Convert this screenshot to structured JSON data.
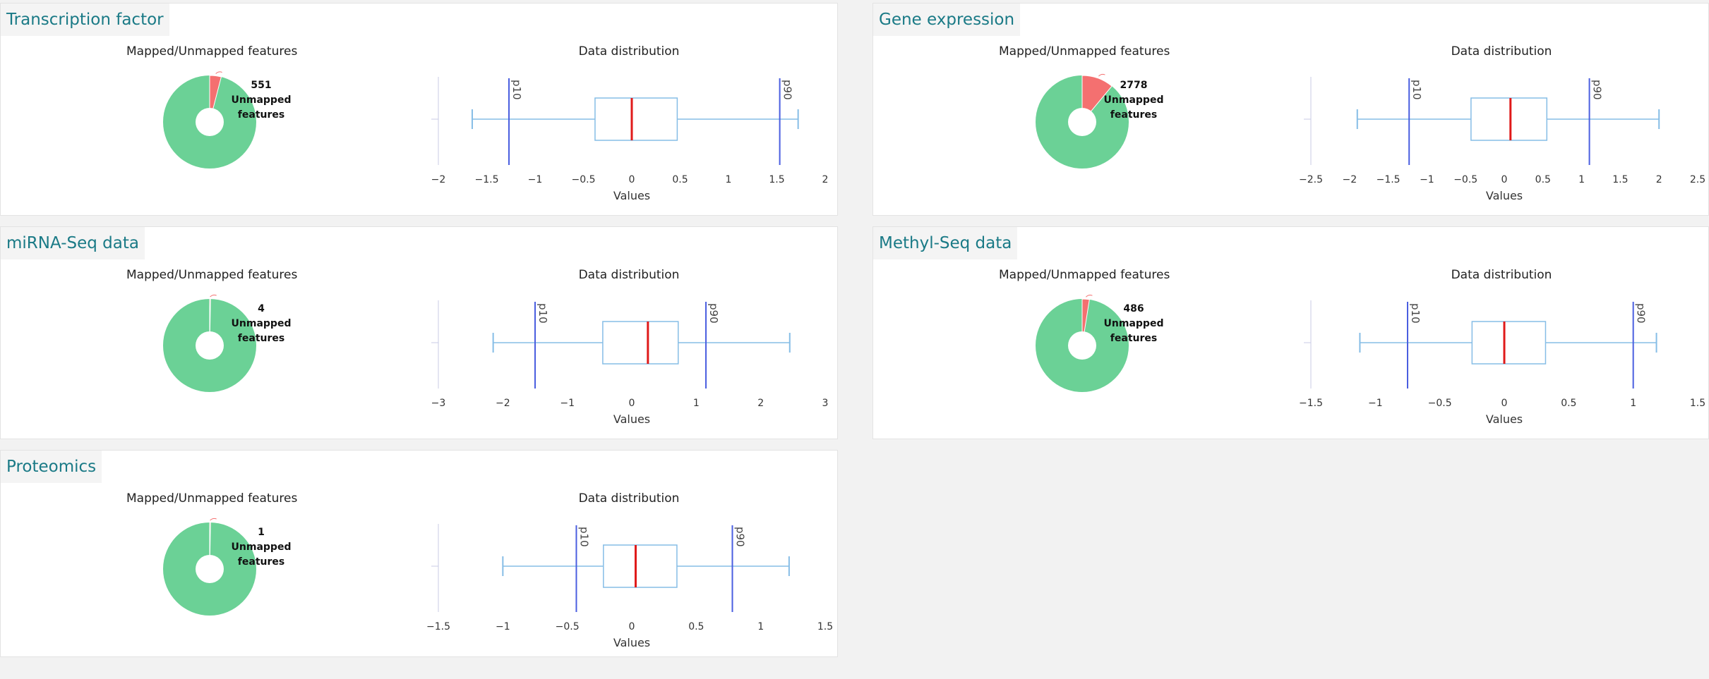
{
  "colors": {
    "mapped": "#6bd196",
    "unmapped": "#f47070",
    "box": "#86bde6",
    "median": "#e01a1a",
    "pline": "#4a5ee0",
    "title": "#1a7a86"
  },
  "labels": {
    "pie_title": "Mapped/Unmapped features",
    "box_title": "Data distribution",
    "xlabel": "Values",
    "unmapped_text": "Unmapped",
    "features_text": "features"
  },
  "panels": [
    {
      "title": "Transcription factor",
      "unmapped_count": "551",
      "unmapped_fraction": 0.04,
      "chart_data": {
        "type": "boxplot",
        "xlim": [
          -2,
          2
        ],
        "ticks": [
          -2,
          -1.5,
          -1,
          -0.5,
          0,
          0.5,
          1,
          1.5,
          2
        ],
        "tick_labels": [
          "−2",
          "−1.5",
          "−1",
          "−0.5",
          "0",
          "0.5",
          "1",
          "1.5",
          "2"
        ],
        "whisker_low": -1.65,
        "q1": -0.38,
        "median": 0,
        "q3": 0.47,
        "whisker_high": 1.72,
        "p10": -1.27,
        "p90": 1.53,
        "xlabel": "Values"
      }
    },
    {
      "title": "Gene expression",
      "unmapped_count": "2778",
      "unmapped_fraction": 0.11,
      "chart_data": {
        "type": "boxplot",
        "xlim": [
          -2.5,
          2.5
        ],
        "ticks": [
          -2.5,
          -2,
          -1.5,
          -1,
          -0.5,
          0,
          0.5,
          1,
          1.5,
          2,
          2.5
        ],
        "tick_labels": [
          "−2.5",
          "−2",
          "−1.5",
          "−1",
          "−0.5",
          "0",
          "0.5",
          "1",
          "1.5",
          "2",
          "2.5"
        ],
        "whisker_low": -1.9,
        "q1": -0.43,
        "median": 0.08,
        "q3": 0.55,
        "whisker_high": 2.0,
        "p10": -1.23,
        "p90": 1.1,
        "xlabel": "Values"
      }
    },
    {
      "title": "miRNA-Seq data",
      "unmapped_count": "4",
      "unmapped_fraction": 0.003,
      "chart_data": {
        "type": "boxplot",
        "xlim": [
          -3,
          3
        ],
        "ticks": [
          -3,
          -2,
          -1,
          0,
          1,
          2,
          3
        ],
        "tick_labels": [
          "−3",
          "−2",
          "−1",
          "0",
          "1",
          "2",
          "3"
        ],
        "whisker_low": -2.15,
        "q1": -0.45,
        "median": 0.25,
        "q3": 0.72,
        "whisker_high": 2.45,
        "p10": -1.5,
        "p90": 1.15,
        "xlabel": "Values"
      }
    },
    {
      "title": "Methyl-Seq data",
      "unmapped_count": "486",
      "unmapped_fraction": 0.025,
      "chart_data": {
        "type": "boxplot",
        "xlim": [
          -1.5,
          1.5
        ],
        "ticks": [
          -1.5,
          -1,
          -0.5,
          0,
          0.5,
          1,
          1.5
        ],
        "tick_labels": [
          "−1.5",
          "−1",
          "−0.5",
          "0",
          "0.5",
          "1",
          "1.5"
        ],
        "whisker_low": -1.12,
        "q1": -0.25,
        "median": 0,
        "q3": 0.32,
        "whisker_high": 1.18,
        "p10": -0.75,
        "p90": 1.0,
        "xlabel": "Values"
      }
    },
    {
      "title": "Proteomics",
      "unmapped_count": "1",
      "unmapped_fraction": 0.002,
      "chart_data": {
        "type": "boxplot",
        "xlim": [
          -1.5,
          1.5
        ],
        "ticks": [
          -1.5,
          -1,
          -0.5,
          0,
          0.5,
          1,
          1.5
        ],
        "tick_labels": [
          "−1.5",
          "−1",
          "−0.5",
          "0",
          "0.5",
          "1",
          "1.5"
        ],
        "whisker_low": -1.0,
        "q1": -0.22,
        "median": 0.03,
        "q3": 0.35,
        "whisker_high": 1.22,
        "p10": -0.43,
        "p90": 0.78,
        "xlabel": "Values"
      }
    }
  ],
  "p_labels": {
    "p10": "p10",
    "p90": "p90"
  }
}
